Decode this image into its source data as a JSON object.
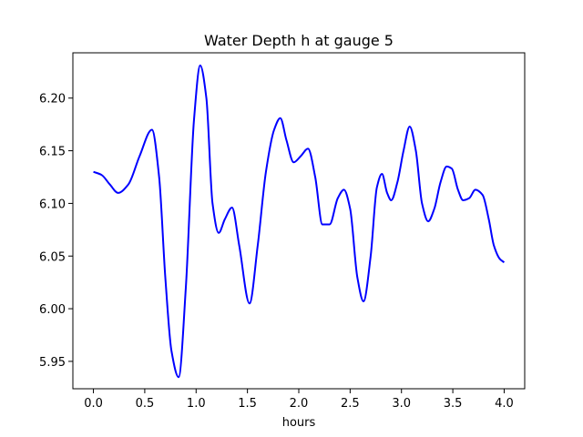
{
  "chart_data": {
    "type": "line",
    "title": "Water Depth h at gauge 5",
    "xlabel": "hours",
    "ylabel": "",
    "xlim": [
      -0.2,
      4.2
    ],
    "ylim": [
      5.924,
      6.243
    ],
    "xticks": [
      0.0,
      0.5,
      1.0,
      1.5,
      2.0,
      2.5,
      3.0,
      3.5,
      4.0
    ],
    "xtick_labels": [
      "0.0",
      "0.5",
      "1.0",
      "1.5",
      "2.0",
      "2.5",
      "3.0",
      "3.5",
      "4.0"
    ],
    "yticks": [
      5.95,
      6.0,
      6.05,
      6.1,
      6.15,
      6.2
    ],
    "ytick_labels": [
      "5.95",
      "6.00",
      "6.05",
      "6.10",
      "6.15",
      "6.20"
    ],
    "grid": false,
    "legend": "none",
    "series": [
      {
        "color": "#0000ff",
        "x": [
          0.0,
          0.08,
          0.16,
          0.24,
          0.34,
          0.45,
          0.57,
          0.64,
          0.7,
          0.76,
          0.83,
          0.9,
          0.98,
          1.04,
          1.1,
          1.16,
          1.22,
          1.28,
          1.35,
          1.42,
          1.52,
          1.6,
          1.68,
          1.76,
          1.82,
          1.88,
          1.95,
          2.02,
          2.09,
          2.16,
          2.23,
          2.3,
          2.38,
          2.44,
          2.5,
          2.57,
          2.63,
          2.7,
          2.76,
          2.81,
          2.86,
          2.9,
          2.96,
          3.02,
          3.08,
          3.14,
          3.2,
          3.26,
          3.32,
          3.38,
          3.44,
          3.49,
          3.55,
          3.6,
          3.66,
          3.72,
          3.79,
          3.85,
          3.9,
          3.96,
          4.0
        ],
        "values": [
          6.13,
          6.127,
          6.118,
          6.11,
          6.118,
          6.145,
          6.17,
          6.125,
          6.03,
          5.96,
          5.935,
          6.02,
          6.18,
          6.231,
          6.2,
          6.1,
          6.072,
          6.085,
          6.096,
          6.06,
          6.005,
          6.06,
          6.13,
          6.17,
          6.181,
          6.16,
          6.139,
          6.145,
          6.152,
          6.125,
          6.08,
          6.08,
          6.105,
          6.113,
          6.095,
          6.03,
          6.007,
          6.05,
          6.115,
          6.128,
          6.11,
          6.103,
          6.12,
          6.15,
          6.173,
          6.15,
          6.1,
          6.083,
          6.095,
          6.12,
          6.135,
          6.133,
          6.113,
          6.103,
          6.105,
          6.113,
          6.108,
          6.085,
          6.06,
          6.047,
          6.044
        ]
      }
    ]
  }
}
